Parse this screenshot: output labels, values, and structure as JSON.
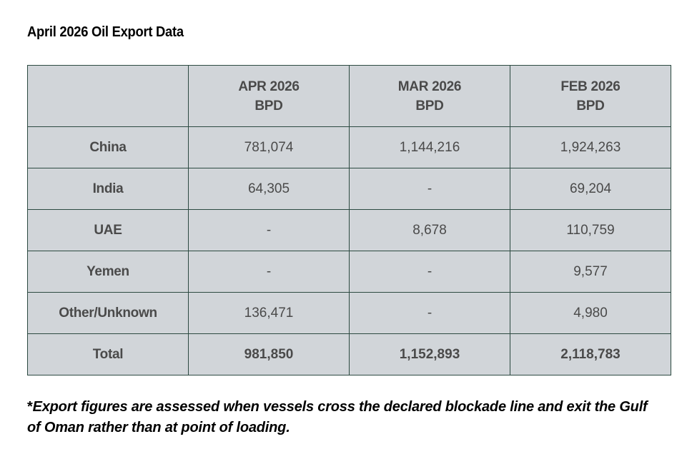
{
  "title": "April 2026 Oil Export Data",
  "table": {
    "headers": [
      {
        "line1": "",
        "line2": ""
      },
      {
        "line1": "APR 2026",
        "line2": "BPD"
      },
      {
        "line1": "MAR 2026",
        "line2": "BPD"
      },
      {
        "line1": "FEB 2026",
        "line2": "BPD"
      }
    ],
    "rows": [
      {
        "label": "China",
        "values": [
          "781,074",
          "1,144,216",
          "1,924,263"
        ]
      },
      {
        "label": "India",
        "values": [
          "64,305",
          "-",
          "69,204"
        ]
      },
      {
        "label": "UAE",
        "values": [
          "-",
          "8,678",
          "110,759"
        ]
      },
      {
        "label": "Yemen",
        "values": [
          "-",
          "-",
          "9,577"
        ]
      },
      {
        "label": "Other/Unknown",
        "values": [
          "136,471",
          "-",
          "4,980"
        ]
      }
    ],
    "total": {
      "label": "Total",
      "values": [
        "981,850",
        "1,152,893",
        "2,118,783"
      ]
    }
  },
  "footnote": {
    "asterisk": "*",
    "text": "Export figures are assessed when vessels cross the declared blockade line and exit the Gulf of Oman rather than at point of loading."
  },
  "colors": {
    "table_background": "#d1d5d9",
    "table_border": "#2c4a41",
    "cell_text": "#4a4a4a"
  }
}
